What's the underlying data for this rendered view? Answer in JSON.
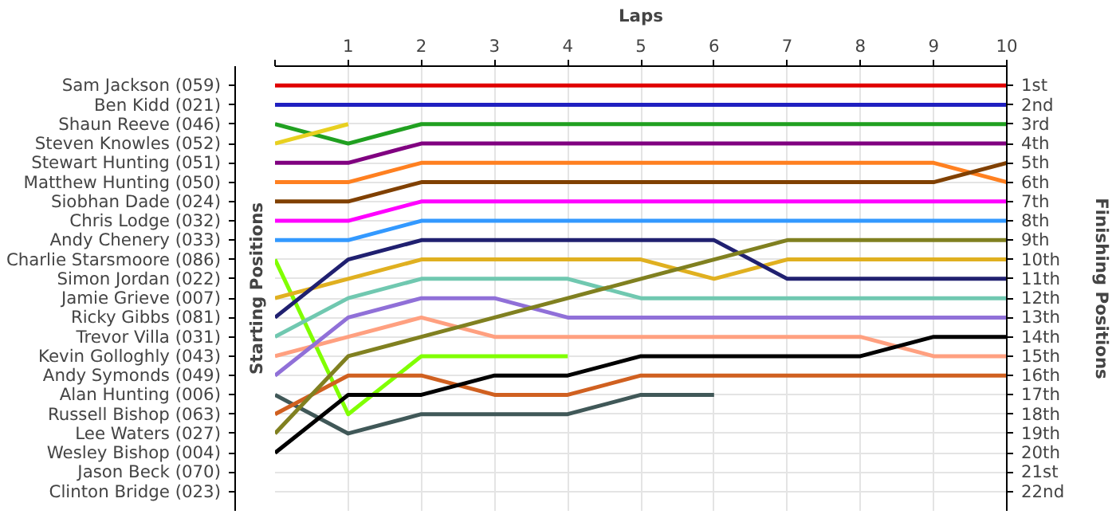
{
  "chart_data": {
    "type": "line",
    "xlabel": "Laps",
    "y2label": "Finishing Positions",
    "x": [
      0,
      1,
      2,
      3,
      4,
      5,
      6,
      7,
      8,
      9,
      10
    ],
    "xlim": [
      0,
      10
    ],
    "xticks": [
      {
        "value": 0,
        "label": null
      },
      1,
      2,
      3,
      4,
      5,
      6,
      7,
      8,
      9,
      10
    ],
    "y2lim": [
      23,
      0
    ],
    "y2ticks": [
      {
        "value": 1,
        "label": "1st"
      },
      {
        "value": 2,
        "label": "2nd"
      },
      {
        "value": 3,
        "label": "3rd"
      },
      {
        "value": 4,
        "label": "4th"
      },
      {
        "value": 5,
        "label": "5th"
      },
      {
        "value": 6,
        "label": "6th"
      },
      {
        "value": 7,
        "label": "7th"
      },
      {
        "value": 8,
        "label": "8th"
      },
      {
        "value": 9,
        "label": "9th"
      },
      {
        "value": 10,
        "label": "10th"
      },
      {
        "value": 11,
        "label": "11th"
      },
      {
        "value": 12,
        "label": "12th"
      },
      {
        "value": 13,
        "label": "13th"
      },
      {
        "value": 14,
        "label": "14th"
      },
      {
        "value": 15,
        "label": "15th"
      },
      {
        "value": 16,
        "label": "16th"
      },
      {
        "value": 17,
        "label": "17th"
      },
      {
        "value": 18,
        "label": "18th"
      },
      {
        "value": 19,
        "label": "19th"
      },
      {
        "value": 20,
        "label": "20th"
      },
      {
        "value": 21,
        "label": "21st"
      },
      {
        "value": 22,
        "label": "22nd"
      }
    ],
    "annotations": [
      "Starting Positions",
      "Sam Jackson (059)",
      "Ben Kidd (021)",
      "Shaun Reeve (046)",
      "Steven Knowles (052)",
      "Stewart Hunting (051)",
      "Matthew Hunting (050)",
      "Siobhan Dade (024)",
      "Chris Lodge (032)",
      "Andy Chenery (033)",
      "Charlie Starsmoore (086)",
      "Simon Jordan (022)",
      "Jamie Grieve (007)",
      "Ricky Gibbs (081)",
      "Trevor Villa (031)",
      "Kevin Golloghly (043)",
      "Andy Symonds (049)",
      "Alan Hunting (006)",
      "Russell Bishop (063)",
      "Lee Waters (027)",
      "Wesley Bishop (004)",
      "Jason Beck (070)",
      "Clinton Bridge (023)"
    ],
    "grid": true,
    "line_style": "solid",
    "series": [
      {
        "axis": "y2",
        "color": "#e00000",
        "values": [
          1,
          1,
          1,
          1,
          1,
          1,
          1,
          1,
          1,
          1,
          1
        ]
      },
      {
        "axis": "y2",
        "color": "#2020c0",
        "values": [
          2,
          2,
          2,
          2,
          2,
          2,
          2,
          2,
          2,
          2,
          2
        ]
      },
      {
        "axis": "y2",
        "color": "#20a020",
        "values": [
          3,
          4,
          3,
          3,
          3,
          3,
          3,
          3,
          3,
          3,
          3
        ]
      },
      {
        "axis": "y2",
        "color": "#e8d020",
        "values": [
          4,
          3,
          null,
          null,
          null,
          null,
          null,
          null,
          null,
          null,
          null
        ]
      },
      {
        "axis": "y2",
        "color": "#800080",
        "values": [
          5,
          5,
          4,
          4,
          4,
          4,
          4,
          4,
          4,
          4,
          4
        ]
      },
      {
        "axis": "y2",
        "color": "#ff8020",
        "values": [
          6,
          6,
          5,
          5,
          5,
          5,
          5,
          5,
          5,
          5,
          6
        ]
      },
      {
        "axis": "y2",
        "color": "#804000",
        "values": [
          7,
          7,
          6,
          6,
          6,
          6,
          6,
          6,
          6,
          6,
          5
        ]
      },
      {
        "axis": "y2",
        "color": "#ff00ff",
        "values": [
          8,
          8,
          7,
          7,
          7,
          7,
          7,
          7,
          7,
          7,
          7
        ]
      },
      {
        "axis": "y2",
        "color": "#3399ff",
        "values": [
          9,
          9,
          8,
          8,
          8,
          8,
          8,
          8,
          8,
          8,
          8
        ]
      },
      {
        "axis": "y2",
        "color": "#80ff00",
        "values": [
          10,
          18,
          15,
          15,
          15,
          null,
          null,
          null,
          null,
          null,
          null
        ]
      },
      {
        "axis": "y2",
        "color": "#e0b020",
        "values": [
          12,
          11,
          10,
          10,
          10,
          10,
          11,
          10,
          10,
          10,
          10
        ]
      },
      {
        "axis": "y2",
        "color": "#202070",
        "values": [
          13,
          10,
          9,
          9,
          9,
          9,
          9,
          11,
          11,
          11,
          11
        ]
      },
      {
        "axis": "y2",
        "color": "#70c8b0",
        "values": [
          14,
          12,
          11,
          11,
          11,
          12,
          12,
          12,
          12,
          12,
          12
        ]
      },
      {
        "axis": "y2",
        "color": "#ffa080",
        "values": [
          15,
          14,
          13,
          14,
          14,
          14,
          14,
          14,
          14,
          15,
          15
        ]
      },
      {
        "axis": "y2",
        "color": "#9070d8",
        "values": [
          16,
          13,
          12,
          12,
          13,
          13,
          13,
          13,
          13,
          13,
          13
        ]
      },
      {
        "axis": "y2",
        "color": "#405858",
        "values": [
          17,
          19,
          18,
          18,
          18,
          17,
          17,
          null,
          null,
          null,
          null
        ]
      },
      {
        "axis": "y2",
        "color": "#d06020",
        "values": [
          18,
          16,
          16,
          17,
          17,
          16,
          16,
          16,
          16,
          16,
          16
        ]
      },
      {
        "axis": "y2",
        "color": "#808020",
        "values": [
          19,
          15,
          14,
          13,
          12,
          11,
          10,
          9,
          9,
          9,
          9
        ]
      },
      {
        "axis": "y2",
        "color": "#000000",
        "values": [
          20,
          17,
          17,
          16,
          16,
          15,
          15,
          15,
          15,
          14,
          14
        ]
      }
    ]
  }
}
